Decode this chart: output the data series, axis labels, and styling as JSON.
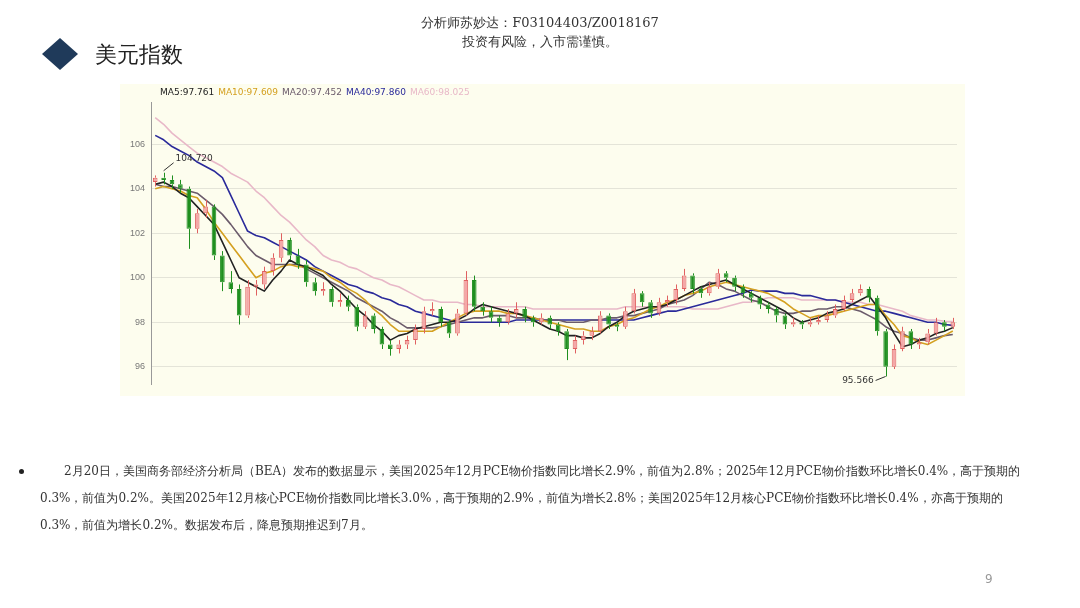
{
  "chart_data": {
    "type": "candlestick",
    "title": "美元指数",
    "annotations": [
      "分析师苏妙达：F03104403/Z0018167",
      "投资有风险，入市需谨慎。",
      "2月20日，美国商务部经济分析局（BEA）发布的数据显示，美国2025年12月PCE物价指数同比增长2.9%，前值为2.8%；2025年12月PCE物价指数环比增长0.4%，高于预期的0.3%，前值为0.2%。美国2025年12月核心PCE物价指数同比增长3.0%，高于预期的2.9%，前值为增长2.8%；美国2025年12月核心PCE物价指数环比增长0.4%，亦高于预期的0.3%，前值为增长0.2%。数据发布后，降息预期推迟到7月。",
      "9",
      "104.720",
      "95.566"
    ],
    "categories": [
      null,
      null,
      null,
      null,
      null,
      null,
      null,
      null,
      null,
      null,
      null,
      null,
      null,
      null,
      null,
      null,
      null,
      null,
      null,
      null,
      null,
      null,
      null,
      null,
      null,
      null,
      null,
      null,
      null,
      null,
      null,
      null,
      null,
      null,
      null,
      null,
      null,
      null,
      null,
      null,
      null,
      null,
      null,
      null,
      null,
      null,
      null,
      null,
      null,
      null,
      null,
      null,
      null,
      null,
      null,
      null,
      null,
      null,
      null,
      null,
      null,
      null,
      null,
      null,
      null,
      null,
      null,
      null,
      null,
      null,
      null,
      null,
      null,
      null,
      null,
      null,
      null,
      null,
      null,
      null,
      null,
      null,
      null,
      null,
      null,
      null,
      null,
      null,
      null,
      null,
      null,
      null,
      null,
      null,
      null,
      null
    ],
    "ohlc": [
      [
        104.3,
        104.6,
        104.1,
        104.5
      ],
      [
        104.5,
        104.72,
        104.2,
        104.4
      ],
      [
        104.4,
        104.6,
        104.0,
        104.2
      ],
      [
        104.2,
        104.4,
        103.8,
        104.0
      ],
      [
        104.0,
        104.1,
        101.3,
        102.2
      ],
      [
        102.2,
        103.1,
        102.0,
        102.9
      ],
      [
        102.9,
        103.5,
        102.7,
        103.2
      ],
      [
        103.2,
        103.3,
        100.8,
        101.0
      ],
      [
        101.0,
        101.2,
        99.4,
        99.8
      ],
      [
        99.8,
        100.3,
        99.3,
        99.5
      ],
      [
        99.5,
        99.7,
        97.9,
        98.3
      ],
      [
        98.3,
        99.9,
        98.2,
        99.6
      ],
      [
        99.6,
        99.9,
        99.2,
        99.7
      ],
      [
        99.7,
        100.5,
        99.5,
        100.3
      ],
      [
        100.3,
        101.1,
        100.1,
        100.9
      ],
      [
        100.9,
        102.0,
        100.7,
        101.7
      ],
      [
        101.7,
        101.8,
        100.8,
        101.0
      ],
      [
        101.0,
        101.3,
        100.4,
        100.6
      ],
      [
        100.6,
        100.8,
        99.6,
        99.8
      ],
      [
        99.8,
        100.0,
        99.2,
        99.4
      ],
      [
        99.4,
        99.8,
        99.2,
        99.5
      ],
      [
        99.5,
        99.6,
        98.7,
        98.9
      ],
      [
        98.9,
        99.3,
        98.7,
        99.0
      ],
      [
        99.0,
        99.2,
        98.5,
        98.7
      ],
      [
        98.7,
        98.8,
        97.6,
        97.8
      ],
      [
        97.8,
        98.5,
        97.7,
        98.3
      ],
      [
        98.3,
        98.4,
        97.5,
        97.7
      ],
      [
        97.7,
        97.8,
        96.8,
        97.0
      ],
      [
        97.0,
        97.2,
        96.5,
        96.8
      ],
      [
        96.8,
        97.2,
        96.6,
        97.0
      ],
      [
        97.0,
        97.4,
        96.8,
        97.2
      ],
      [
        97.2,
        97.9,
        97.0,
        97.7
      ],
      [
        97.7,
        98.7,
        97.5,
        98.5
      ],
      [
        98.5,
        98.9,
        98.3,
        98.6
      ],
      [
        98.6,
        98.7,
        97.8,
        98.0
      ],
      [
        98.0,
        98.1,
        97.3,
        97.5
      ],
      [
        97.5,
        98.6,
        97.4,
        98.4
      ],
      [
        98.4,
        100.3,
        98.3,
        99.9
      ],
      [
        99.9,
        100.1,
        98.5,
        98.7
      ],
      [
        98.7,
        98.9,
        98.3,
        98.5
      ],
      [
        98.5,
        98.7,
        98.0,
        98.2
      ],
      [
        98.2,
        98.3,
        97.8,
        98.0
      ],
      [
        98.0,
        98.6,
        97.9,
        98.4
      ],
      [
        98.4,
        98.9,
        98.2,
        98.6
      ],
      [
        98.6,
        98.7,
        98.0,
        98.2
      ],
      [
        98.2,
        98.3,
        97.8,
        98.0
      ],
      [
        98.0,
        98.4,
        97.9,
        98.2
      ],
      [
        98.2,
        98.3,
        97.7,
        97.9
      ],
      [
        97.9,
        98.0,
        97.4,
        97.6
      ],
      [
        97.6,
        97.7,
        96.3,
        96.8
      ],
      [
        96.8,
        97.4,
        96.6,
        97.2
      ],
      [
        97.2,
        97.6,
        97.0,
        97.4
      ],
      [
        97.4,
        97.8,
        97.2,
        97.6
      ],
      [
        97.6,
        98.5,
        97.5,
        98.3
      ],
      [
        98.3,
        98.4,
        97.7,
        97.9
      ],
      [
        97.9,
        98.0,
        97.6,
        97.8
      ],
      [
        97.8,
        98.7,
        97.7,
        98.5
      ],
      [
        98.5,
        99.5,
        98.4,
        99.3
      ],
      [
        99.3,
        99.4,
        98.7,
        98.9
      ],
      [
        98.9,
        99.0,
        98.2,
        98.4
      ],
      [
        98.4,
        99.1,
        98.3,
        98.9
      ],
      [
        98.9,
        99.2,
        98.7,
        99.0
      ],
      [
        99.0,
        99.7,
        98.8,
        99.5
      ],
      [
        99.5,
        100.4,
        99.4,
        100.1
      ],
      [
        100.1,
        100.2,
        99.3,
        99.5
      ],
      [
        99.5,
        99.6,
        99.1,
        99.3
      ],
      [
        99.3,
        99.8,
        99.2,
        99.6
      ],
      [
        99.6,
        100.4,
        99.5,
        100.2
      ],
      [
        100.2,
        100.3,
        99.8,
        100.0
      ],
      [
        100.0,
        100.1,
        99.4,
        99.6
      ],
      [
        99.6,
        99.7,
        99.1,
        99.3
      ],
      [
        99.3,
        99.4,
        98.9,
        99.1
      ],
      [
        99.1,
        99.2,
        98.6,
        98.8
      ],
      [
        98.8,
        98.9,
        98.4,
        98.6
      ],
      [
        98.6,
        98.7,
        98.0,
        98.3
      ],
      [
        98.3,
        98.4,
        97.7,
        97.9
      ],
      [
        97.9,
        98.2,
        97.8,
        98.0
      ],
      [
        98.0,
        98.1,
        97.7,
        97.9
      ],
      [
        97.9,
        98.2,
        97.8,
        98.0
      ],
      [
        98.0,
        98.3,
        97.9,
        98.1
      ],
      [
        98.1,
        98.5,
        98.0,
        98.3
      ],
      [
        98.3,
        98.8,
        98.2,
        98.6
      ],
      [
        98.6,
        99.2,
        98.5,
        99.0
      ],
      [
        99.0,
        99.5,
        98.9,
        99.3
      ],
      [
        99.3,
        99.7,
        99.2,
        99.5
      ],
      [
        99.5,
        99.6,
        98.9,
        99.1
      ],
      [
        99.1,
        99.2,
        97.4,
        97.6
      ],
      [
        97.6,
        97.7,
        95.566,
        96.0
      ],
      [
        96.0,
        97.0,
        95.9,
        96.8
      ],
      [
        96.8,
        97.8,
        96.7,
        97.6
      ],
      [
        97.6,
        97.7,
        96.8,
        97.0
      ],
      [
        97.0,
        97.3,
        96.8,
        97.1
      ],
      [
        97.1,
        97.7,
        97.0,
        97.5
      ],
      [
        97.5,
        98.2,
        97.4,
        98.0
      ],
      [
        98.0,
        98.1,
        97.6,
        97.8
      ],
      [
        97.8,
        98.2,
        97.7,
        98.0
      ]
    ],
    "series": [
      {
        "name": "MA5:97.761",
        "type": "line",
        "color": "#222222",
        "values": [
          104.2,
          104.3,
          104.1,
          103.8,
          103.6,
          103.2,
          102.8,
          102.4,
          101.6,
          100.8,
          100.0,
          99.8,
          99.6,
          99.4,
          99.9,
          100.3,
          100.8,
          100.6,
          100.5,
          100.3,
          100.1,
          99.7,
          99.4,
          99.0,
          98.6,
          98.3,
          97.9,
          97.6,
          97.2,
          97.4,
          97.5,
          97.7,
          97.8,
          97.9,
          98.0,
          98.0,
          98.1,
          98.3,
          98.6,
          98.8,
          98.7,
          98.6,
          98.5,
          98.4,
          98.3,
          98.1,
          97.9,
          97.7,
          97.6,
          97.4,
          97.4,
          97.3,
          97.3,
          97.5,
          97.8,
          98.0,
          98.3,
          98.5,
          98.6,
          98.7,
          98.7,
          98.8,
          99.0,
          99.2,
          99.4,
          99.6,
          99.7,
          99.8,
          99.9,
          99.7,
          99.5,
          99.3,
          99.1,
          98.9,
          98.7,
          98.5,
          98.2,
          98.0,
          98.1,
          98.2,
          98.4,
          98.5,
          98.6,
          98.8,
          99.0,
          99.2,
          98.7,
          98.2,
          97.5,
          96.9,
          97.0,
          97.2,
          97.3,
          97.5,
          97.6,
          97.76
        ]
      },
      {
        "name": "MA10:97.609",
        "type": "line",
        "color": "#d4a020",
        "values": [
          104.0,
          104.1,
          104.0,
          103.9,
          103.7,
          103.6,
          103.1,
          102.5,
          102.0,
          101.5,
          101.0,
          100.5,
          100.0,
          100.2,
          100.3,
          100.5,
          100.6,
          100.5,
          100.5,
          100.4,
          100.3,
          100.0,
          99.8,
          99.5,
          99.3,
          99.0,
          98.6,
          98.3,
          97.9,
          97.6,
          97.6,
          97.6,
          97.6,
          97.6,
          97.8,
          98.0,
          98.2,
          98.4,
          98.5,
          98.5,
          98.5,
          98.5,
          98.4,
          98.4,
          98.3,
          98.2,
          98.1,
          98.0,
          97.9,
          97.8,
          97.7,
          97.7,
          97.6,
          97.6,
          97.8,
          97.9,
          98.1,
          98.2,
          98.4,
          98.6,
          98.7,
          98.9,
          99.0,
          99.2,
          99.3,
          99.4,
          99.6,
          99.7,
          99.8,
          99.7,
          99.6,
          99.5,
          99.4,
          99.3,
          99.1,
          98.9,
          98.6,
          98.4,
          98.2,
          98.3,
          98.3,
          98.4,
          98.5,
          98.6,
          98.7,
          98.8,
          98.8,
          98.3,
          97.9,
          97.4,
          97.3,
          97.1,
          97.0,
          97.2,
          97.4,
          97.61
        ]
      },
      {
        "name": "MA20:97.452",
        "type": "line",
        "color": "#6b5b6b",
        "values": [
          104.2,
          104.1,
          104.1,
          104.0,
          103.9,
          103.8,
          103.5,
          103.2,
          102.85,
          102.4,
          101.9,
          101.4,
          101.0,
          100.8,
          100.6,
          100.6,
          100.6,
          100.6,
          100.4,
          100.2,
          100.0,
          99.8,
          99.6,
          99.4,
          99.1,
          98.9,
          98.7,
          98.5,
          98.2,
          98.0,
          97.75,
          97.75,
          97.75,
          97.75,
          97.8,
          97.9,
          98.0,
          98.1,
          98.2,
          98.2,
          98.3,
          98.3,
          98.3,
          98.2,
          98.2,
          98.2,
          98.1,
          98.1,
          98.1,
          98.0,
          98.0,
          98.0,
          98.1,
          98.1,
          98.2,
          98.2,
          98.3,
          98.3,
          98.4,
          98.5,
          98.6,
          98.8,
          98.9,
          99.0,
          99.2,
          99.5,
          99.8,
          99.7,
          99.5,
          99.4,
          99.2,
          99.0,
          98.9,
          98.7,
          98.5,
          98.4,
          98.4,
          98.5,
          98.5,
          98.6,
          98.6,
          98.7,
          98.7,
          98.6,
          98.5,
          98.3,
          98.1,
          97.8,
          97.6,
          97.5,
          97.3,
          97.2,
          97.2,
          97.3,
          97.4,
          97.45
        ]
      },
      {
        "name": "MA40:97.860",
        "type": "line",
        "color": "#2a2a9a",
        "values": [
          106.4,
          106.2,
          105.9,
          105.7,
          105.5,
          105.2,
          105.0,
          104.8,
          104.5,
          103.7,
          102.9,
          102.1,
          101.9,
          101.8,
          101.6,
          101.4,
          101.2,
          101.0,
          100.8,
          100.5,
          100.3,
          100.1,
          99.9,
          99.7,
          99.6,
          99.4,
          99.3,
          99.1,
          99.0,
          98.8,
          98.7,
          98.5,
          98.4,
          98.3,
          98.2,
          98.1,
          98.0,
          98.0,
          98.0,
          98.0,
          98.0,
          98.0,
          98.0,
          98.1,
          98.1,
          98.1,
          98.1,
          98.1,
          98.1,
          98.1,
          98.1,
          98.1,
          98.1,
          98.1,
          98.1,
          98.1,
          98.1,
          98.1,
          98.2,
          98.3,
          98.4,
          98.5,
          98.5,
          98.6,
          98.7,
          98.8,
          98.9,
          99.0,
          99.1,
          99.2,
          99.3,
          99.45,
          99.4,
          99.4,
          99.4,
          99.3,
          99.3,
          99.2,
          99.2,
          99.1,
          99.0,
          99.0,
          98.9,
          98.8,
          98.7,
          98.6,
          98.5,
          98.5,
          98.4,
          98.3,
          98.2,
          98.1,
          98.0,
          98.0,
          97.9,
          97.86
        ]
      },
      {
        "name": "MA60:98.025",
        "type": "line",
        "color": "#e8b8c8",
        "values": [
          107.2,
          106.9,
          106.5,
          106.2,
          105.9,
          105.6,
          105.4,
          105.2,
          105.0,
          104.7,
          104.5,
          104.3,
          103.9,
          103.6,
          103.2,
          102.8,
          102.5,
          102.1,
          101.7,
          101.4,
          101.0,
          100.8,
          100.7,
          100.5,
          100.4,
          100.2,
          100.0,
          99.9,
          99.7,
          99.6,
          99.4,
          99.2,
          99.0,
          99.0,
          98.9,
          98.9,
          98.9,
          98.8,
          98.8,
          98.7,
          98.7,
          98.7,
          98.7,
          98.7,
          98.7,
          98.6,
          98.6,
          98.6,
          98.6,
          98.6,
          98.6,
          98.6,
          98.6,
          98.6,
          98.6,
          98.6,
          98.7,
          98.7,
          98.7,
          98.7,
          98.7,
          98.7,
          98.7,
          98.7,
          98.6,
          98.6,
          98.6,
          98.6,
          98.7,
          98.8,
          98.9,
          98.9,
          99.0,
          99.1,
          99.1,
          99.1,
          99.1,
          99.0,
          99.0,
          99.0,
          99.0,
          99.0,
          98.9,
          98.9,
          98.9,
          98.8,
          98.8,
          98.7,
          98.6,
          98.5,
          98.3,
          98.2,
          98.1,
          98.1,
          98.05,
          98.03
        ]
      }
    ],
    "ylim": [
      95.2,
      107.9
    ],
    "yticks": [
      96,
      98,
      100,
      102,
      104,
      106
    ],
    "grid": "y",
    "tick_labels": "y"
  }
}
